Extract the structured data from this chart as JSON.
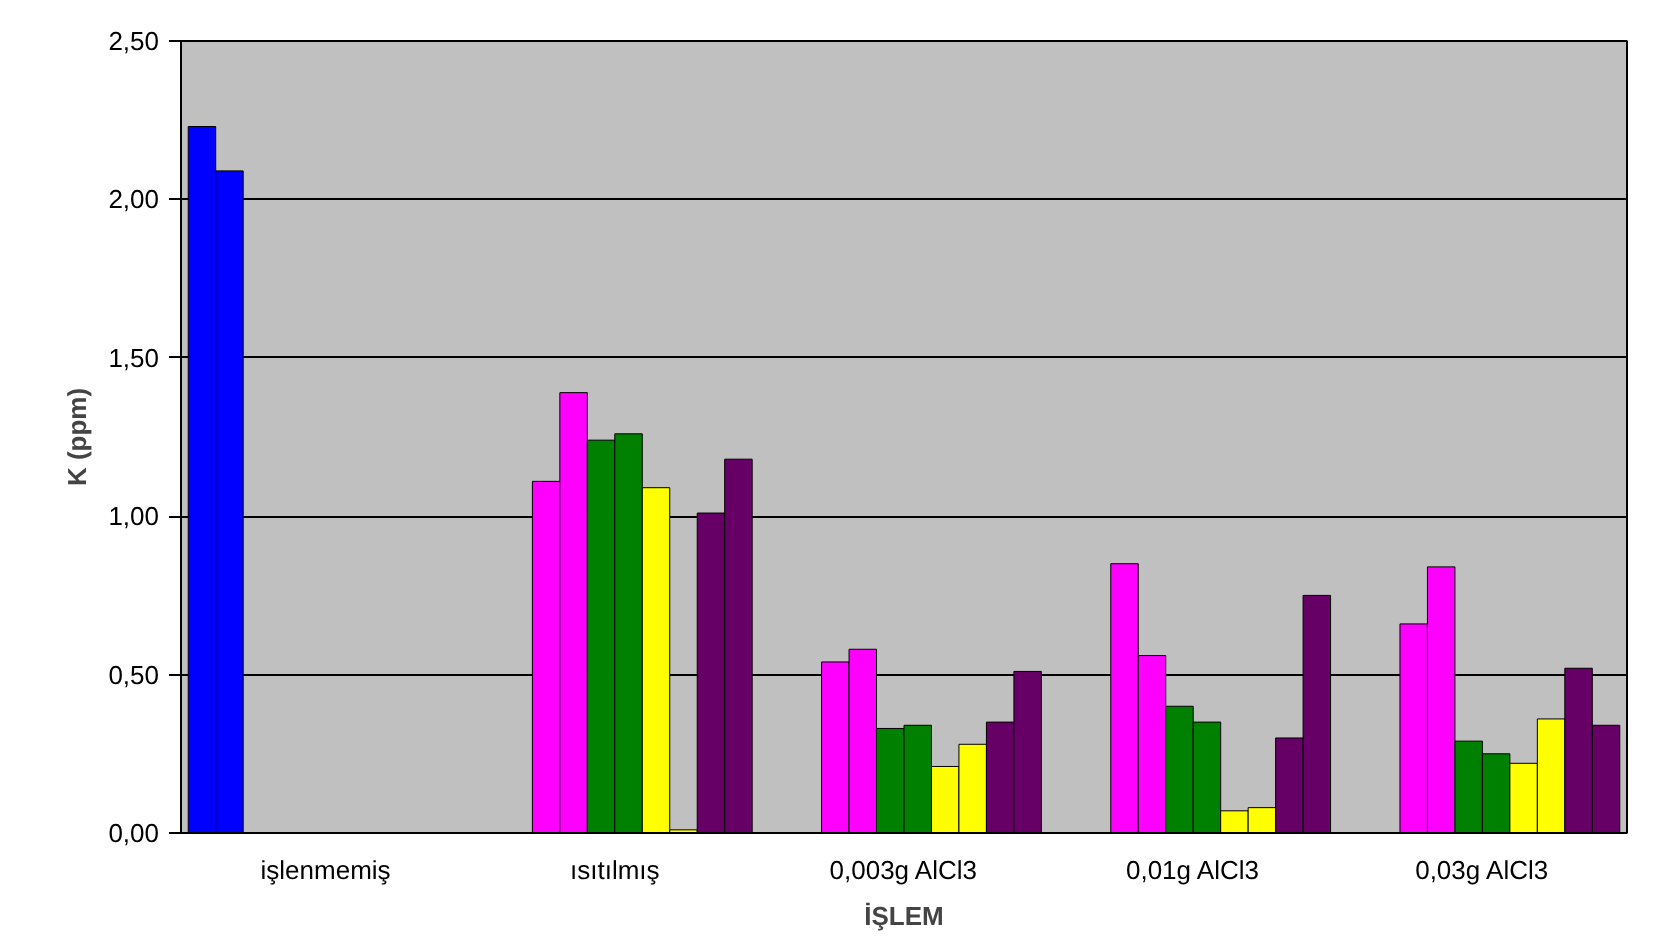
{
  "chart_data": {
    "type": "bar",
    "xlabel": "İŞLEM",
    "ylabel": "K (ppm)",
    "categories": [
      "işlenmemiş",
      "ısıtılmış",
      "0,003g AlCl3",
      "0,01g AlCl3",
      "0,03g AlCl3"
    ],
    "series": [
      {
        "color": "#0000ff",
        "values": [
          2.23,
          null,
          null,
          null,
          null
        ]
      },
      {
        "color": "#0000ff",
        "values": [
          2.09,
          null,
          null,
          null,
          null
        ]
      },
      {
        "color": "#ff00ff",
        "values": [
          null,
          1.11,
          0.54,
          0.85,
          0.66
        ]
      },
      {
        "color": "#ff00ff",
        "values": [
          null,
          1.39,
          0.58,
          0.56,
          0.84
        ]
      },
      {
        "color": "#008000",
        "values": [
          null,
          1.24,
          0.33,
          0.4,
          0.29
        ]
      },
      {
        "color": "#008000",
        "values": [
          null,
          1.26,
          0.34,
          0.35,
          0.25
        ]
      },
      {
        "color": "#ffff00",
        "values": [
          null,
          1.09,
          0.21,
          0.07,
          0.22
        ]
      },
      {
        "color": "#ffff00",
        "values": [
          null,
          0.01,
          0.28,
          0.08,
          0.36
        ]
      },
      {
        "color": "#660066",
        "values": [
          null,
          1.01,
          0.35,
          0.3,
          0.52
        ]
      },
      {
        "color": "#660066",
        "values": [
          null,
          1.18,
          0.51,
          0.75,
          0.34
        ]
      }
    ],
    "ylim": [
      0,
      2.5
    ],
    "yticks": [
      {
        "value": 0,
        "label": "0,00"
      },
      {
        "value": 0.5,
        "label": "0,50"
      },
      {
        "value": 1,
        "label": "1,00"
      },
      {
        "value": 1.5,
        "label": "1,50"
      },
      {
        "value": 2,
        "label": "2,00"
      },
      {
        "value": 2.5,
        "label": "2,50"
      }
    ],
    "grid": "y"
  }
}
